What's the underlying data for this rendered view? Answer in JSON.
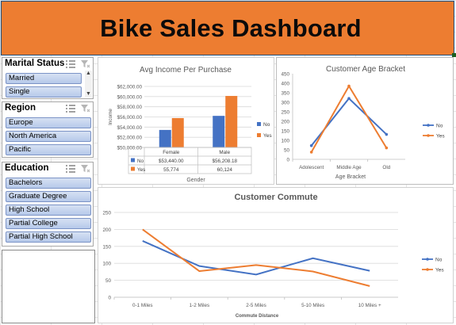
{
  "dashboard": {
    "title": "Bike Sales Dashboard"
  },
  "slicers": {
    "marital_status": {
      "title": "Marital Status",
      "items": [
        "Married",
        "Single"
      ]
    },
    "region": {
      "title": "Region",
      "items": [
        "Europe",
        "North America",
        "Pacific"
      ]
    },
    "education": {
      "title": "Education",
      "items": [
        "Bachelors",
        "Graduate Degree",
        "High School",
        "Partial College",
        "Partial High School"
      ]
    }
  },
  "colors": {
    "banner": "#ed7d31",
    "no": "#4472c4",
    "yes": "#ed7d31",
    "slicer_item": "#b6c9ea"
  },
  "icons": {
    "multi_select": "multi-select-icon",
    "clear_filter": "clear-filter-icon"
  },
  "chart_data": [
    {
      "id": "income",
      "type": "bar",
      "title": "Avg Income Per Purchase",
      "xlabel": "Gender",
      "ylabel": "Income",
      "categories": [
        "Female",
        "Male"
      ],
      "series": [
        {
          "name": "No",
          "values": [
            53440.0,
            56208.18
          ]
        },
        {
          "name": "Yes",
          "values": [
            55774,
            60124
          ]
        }
      ],
      "table_rows": [
        {
          "name": "No",
          "cells": [
            "$53,440.00",
            "$56,208.18"
          ]
        },
        {
          "name": "Yes",
          "cells": [
            "55,774",
            "60,124"
          ]
        }
      ],
      "ylim": [
        50000,
        62000
      ],
      "yticks": [
        "$50,000.00",
        "$52,000.00",
        "$54,000.00",
        "$56,000.00",
        "$58,000.00",
        "$60,000.00",
        "$62,000.00"
      ],
      "legend": "right",
      "grid": true
    },
    {
      "id": "age",
      "type": "line",
      "title": "Customer Age Bracket",
      "xlabel": "Age Bracket",
      "ylabel": "",
      "categories": [
        "Adolescent",
        "Middle Age",
        "Old"
      ],
      "series": [
        {
          "name": "No",
          "values": [
            72,
            320,
            131
          ]
        },
        {
          "name": "Yes",
          "values": [
            38,
            385,
            60
          ]
        }
      ],
      "ylim": [
        0,
        450
      ],
      "yticks": [
        "0",
        "50",
        "100",
        "150",
        "200",
        "250",
        "300",
        "350",
        "400",
        "450"
      ],
      "legend": "right",
      "grid": false
    },
    {
      "id": "commute",
      "type": "line",
      "title": "Customer Commute",
      "xlabel": "Commute Distance",
      "ylabel": "",
      "categories": [
        "0-1 Miles",
        "1-2 Miles",
        "2-5 Miles",
        "5-10 Miles",
        "10 Miles +"
      ],
      "series": [
        {
          "name": "No",
          "values": [
            166,
            92,
            67,
            115,
            78
          ]
        },
        {
          "name": "Yes",
          "values": [
            200,
            77,
            95,
            76,
            33
          ]
        }
      ],
      "ylim": [
        0,
        250
      ],
      "yticks": [
        "0",
        "50",
        "100",
        "150",
        "200",
        "250"
      ],
      "legend": "right",
      "grid": true
    }
  ]
}
